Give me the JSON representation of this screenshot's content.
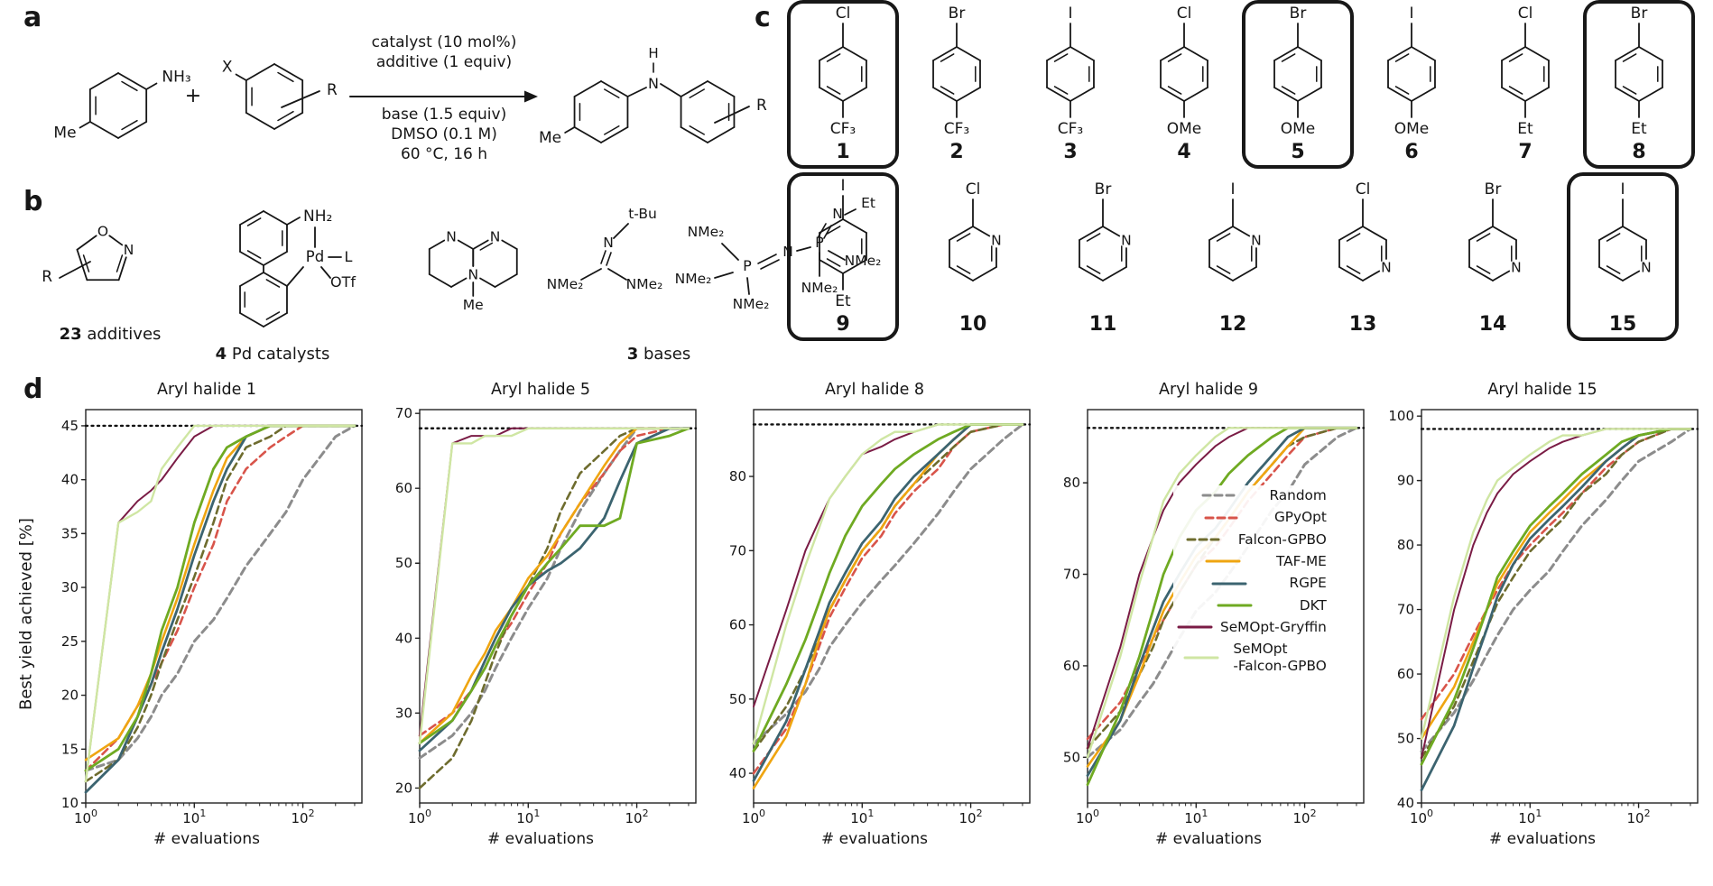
{
  "panels": {
    "a": "a",
    "b": "b",
    "c": "c",
    "d": "d"
  },
  "scheme": {
    "amine_me": "Me",
    "amine_nh": "NH₃",
    "plus": "+",
    "halide_x": "X",
    "halide_r": "R",
    "cond_top": [
      "catalyst (10 mol%)",
      "additive (1 equiv)"
    ],
    "cond_bottom": [
      "base (1.5 equiv)",
      "DMSO (0.1 M)",
      "60 °C, 16 h"
    ],
    "prod_me": "Me",
    "prod_h": "H",
    "prod_n": "N",
    "prod_r": "R"
  },
  "library": {
    "additives": {
      "count": "23",
      "label": "additives",
      "o": "O",
      "n": "N",
      "r": "R"
    },
    "catalysts": {
      "count": "4",
      "label": "Pd catalysts",
      "nh2": "NH₂",
      "pd": "Pd",
      "l": "L",
      "otf": "OTf"
    },
    "bases": {
      "count": "3",
      "label": "bases",
      "mtbd": {
        "n_left": "N",
        "n_right": "N",
        "n_bottom": "N",
        "me": "Me"
      },
      "btmg": {
        "tbu": "t-Bu",
        "n": "N",
        "nme2_left": "NMe₂",
        "nme2_right": "NMe₂"
      },
      "p2et": {
        "p1": "P",
        "p2": "P",
        "n_bridge": "N",
        "n_top": "N",
        "et": "Et",
        "nme2_a": "NMe₂",
        "nme2_b": "NMe₂",
        "nme2_c": "NMe₂",
        "nme2_d": "NMe₂",
        "nme2_e": "NMe₂"
      }
    }
  },
  "aryl_halides": [
    {
      "num": "1",
      "hal": "Cl",
      "sub": "CF₃",
      "kind": "benzene",
      "boxed": true
    },
    {
      "num": "2",
      "hal": "Br",
      "sub": "CF₃",
      "kind": "benzene",
      "boxed": false
    },
    {
      "num": "3",
      "hal": "I",
      "sub": "CF₃",
      "kind": "benzene",
      "boxed": false
    },
    {
      "num": "4",
      "hal": "Cl",
      "sub": "OMe",
      "kind": "benzene",
      "boxed": false
    },
    {
      "num": "5",
      "hal": "Br",
      "sub": "OMe",
      "kind": "benzene",
      "boxed": true
    },
    {
      "num": "6",
      "hal": "I",
      "sub": "OMe",
      "kind": "benzene",
      "boxed": false
    },
    {
      "num": "7",
      "hal": "Cl",
      "sub": "Et",
      "kind": "benzene",
      "boxed": false
    },
    {
      "num": "8",
      "hal": "Br",
      "sub": "Et",
      "kind": "benzene",
      "boxed": true
    },
    {
      "num": "9",
      "hal": "I",
      "sub": "Et",
      "kind": "benzene",
      "boxed": true
    },
    {
      "num": "10",
      "hal": "Cl",
      "sub": "N",
      "kind": "pyridine2",
      "boxed": false
    },
    {
      "num": "11",
      "hal": "Br",
      "sub": "N",
      "kind": "pyridine2",
      "boxed": false
    },
    {
      "num": "12",
      "hal": "I",
      "sub": "N",
      "kind": "pyridine2",
      "boxed": false
    },
    {
      "num": "13",
      "hal": "Cl",
      "sub": "N",
      "kind": "pyridine3",
      "boxed": false
    },
    {
      "num": "14",
      "hal": "Br",
      "sub": "N",
      "kind": "pyridine3",
      "boxed": false
    },
    {
      "num": "15",
      "hal": "I",
      "sub": "N",
      "kind": "pyridine3",
      "boxed": true
    }
  ],
  "chart_data": {
    "type": "line",
    "xlabel": "# evaluations",
    "ylabel": "Best yield achieved [%]",
    "xscale": "log",
    "xmax": 350,
    "x": [
      1,
      2,
      3,
      4,
      5,
      7,
      10,
      15,
      20,
      30,
      50,
      70,
      100,
      200,
      300
    ],
    "series_names": [
      "Random",
      "GPyOpt",
      "Falcon-GPBO",
      "TAF-ME",
      "RGPE",
      "DKT",
      "SeMOpt-Gryffin",
      "SeMOpt-Falcon-GPBO"
    ],
    "series_styles": [
      {
        "color": "#8c8c8c",
        "dash": true,
        "width": 3
      },
      {
        "color": "#d8544a",
        "dash": true,
        "width": 2.6
      },
      {
        "color": "#6e6c2e",
        "dash": true,
        "width": 2.6
      },
      {
        "color": "#efa511",
        "dash": false,
        "width": 2.6
      },
      {
        "color": "#3c6470",
        "dash": false,
        "width": 2.8
      },
      {
        "color": "#6faa22",
        "dash": false,
        "width": 2.8
      },
      {
        "color": "#7a1c45",
        "dash": false,
        "width": 2
      },
      {
        "color": "#cfe6a3",
        "dash": false,
        "width": 2.4
      }
    ],
    "panels": [
      {
        "title": "Aryl halide 1",
        "ylim": [
          10,
          46.5
        ],
        "yticks": [
          10,
          15,
          20,
          25,
          30,
          35,
          40,
          45
        ],
        "max_line": 45,
        "series": {
          "Random": [
            13,
            14,
            16,
            18,
            20,
            22,
            25,
            27,
            29,
            32,
            35,
            37,
            40,
            44,
            45
          ],
          "GPyOpt": [
            13,
            16,
            19,
            21,
            23,
            26,
            30,
            34,
            38,
            41,
            43,
            44,
            45,
            45,
            45
          ],
          "Falcon-GPBO": [
            12,
            14,
            17,
            20,
            23,
            27,
            31,
            36,
            40,
            43,
            44,
            45,
            45,
            45,
            45
          ],
          "TAF-ME": [
            14,
            16,
            19,
            22,
            25,
            29,
            34,
            39,
            42,
            44,
            45,
            45,
            45,
            45,
            45
          ],
          "RGPE": [
            11,
            14,
            18,
            21,
            24,
            28,
            33,
            38,
            41,
            44,
            45,
            45,
            45,
            45,
            45
          ],
          "DKT": [
            13,
            15,
            18,
            22,
            26,
            30,
            36,
            41,
            43,
            44,
            45,
            45,
            45,
            45,
            45
          ],
          "SeMOpt-Gryffin": [
            12,
            36,
            38,
            39,
            40,
            42,
            44,
            45,
            45,
            45,
            45,
            45,
            45,
            45,
            45
          ],
          "SeMOpt-Falcon-GPBO": [
            12,
            36,
            37,
            38,
            41,
            43,
            45,
            45,
            45,
            45,
            45,
            45,
            45,
            45,
            45
          ]
        }
      },
      {
        "title": "Aryl halide 5",
        "ylim": [
          18,
          70.5
        ],
        "yticks": [
          20,
          30,
          40,
          50,
          60,
          70
        ],
        "max_line": 68,
        "series": {
          "Random": [
            24,
            27,
            30,
            33,
            36,
            40,
            44,
            48,
            52,
            57,
            62,
            65,
            68,
            68,
            68
          ],
          "GPyOpt": [
            27,
            30,
            33,
            36,
            39,
            42,
            46,
            50,
            54,
            58,
            62,
            65,
            67,
            68,
            68
          ],
          "Falcon-GPBO": [
            20,
            24,
            29,
            34,
            38,
            43,
            47,
            52,
            57,
            62,
            65,
            67,
            68,
            68,
            68
          ],
          "TAF-ME": [
            26,
            30,
            35,
            38,
            41,
            44,
            48,
            51,
            54,
            58,
            63,
            66,
            68,
            68,
            68
          ],
          "RGPE": [
            25,
            29,
            33,
            37,
            40,
            44,
            47,
            49,
            50,
            52,
            56,
            61,
            66,
            68,
            68
          ],
          "DKT": [
            26,
            29,
            33,
            36,
            39,
            43,
            47,
            50,
            52,
            55,
            55,
            56,
            66,
            67,
            68
          ],
          "SeMOpt-Gryffin": [
            27,
            66,
            67,
            67,
            67,
            68,
            68,
            68,
            68,
            68,
            68,
            68,
            68,
            68,
            68
          ],
          "SeMOpt-Falcon-GPBO": [
            26,
            66,
            66,
            67,
            67,
            67,
            68,
            68,
            68,
            68,
            68,
            68,
            68,
            68,
            68
          ]
        }
      },
      {
        "title": "Aryl halide 8",
        "ylim": [
          36,
          89
        ],
        "yticks": [
          40,
          50,
          60,
          70,
          80
        ],
        "max_line": 87,
        "series": {
          "Random": [
            44,
            48,
            51,
            54,
            57,
            60,
            63,
            66,
            68,
            71,
            75,
            78,
            81,
            85,
            87
          ],
          "GPyOpt": [
            40,
            46,
            52,
            57,
            61,
            65,
            69,
            72,
            75,
            78,
            81,
            84,
            86,
            87,
            87
          ],
          "Falcon-GPBO": [
            43,
            49,
            54,
            58,
            62,
            66,
            70,
            73,
            76,
            79,
            82,
            84,
            86,
            87,
            87
          ],
          "TAF-ME": [
            38,
            45,
            52,
            58,
            62,
            66,
            70,
            73,
            76,
            79,
            83,
            85,
            87,
            87,
            87
          ],
          "RGPE": [
            39,
            47,
            54,
            59,
            63,
            67,
            71,
            74,
            77,
            80,
            83,
            85,
            87,
            87,
            87
          ],
          "DKT": [
            43,
            52,
            58,
            63,
            67,
            72,
            76,
            79,
            81,
            83,
            85,
            86,
            87,
            87,
            87
          ],
          "SeMOpt-Gryffin": [
            49,
            62,
            70,
            74,
            77,
            80,
            83,
            84,
            85,
            86,
            87,
            87,
            87,
            87,
            87
          ],
          "SeMOpt-Falcon-GPBO": [
            44,
            60,
            68,
            73,
            77,
            80,
            83,
            85,
            86,
            86,
            87,
            87,
            87,
            87,
            87
          ]
        }
      },
      {
        "title": "Aryl halide 9",
        "ylim": [
          45,
          88
        ],
        "yticks": [
          50,
          60,
          70,
          80
        ],
        "max_line": 86,
        "series": {
          "Random": [
            50,
            53,
            56,
            58,
            60,
            63,
            66,
            68,
            70,
            73,
            77,
            79,
            82,
            85,
            86
          ],
          "GPyOpt": [
            52,
            56,
            60,
            63,
            65,
            68,
            71,
            73,
            75,
            78,
            81,
            83,
            85,
            86,
            86
          ],
          "Falcon-GPBO": [
            51,
            55,
            59,
            62,
            65,
            68,
            71,
            74,
            76,
            79,
            82,
            84,
            85,
            86,
            86
          ],
          "TAF-ME": [
            49,
            54,
            59,
            63,
            66,
            69,
            72,
            74,
            76,
            79,
            82,
            84,
            86,
            86,
            86
          ],
          "RGPE": [
            48,
            54,
            60,
            64,
            67,
            70,
            73,
            75,
            77,
            80,
            83,
            85,
            86,
            86,
            86
          ],
          "DKT": [
            47,
            55,
            61,
            66,
            70,
            74,
            77,
            79,
            81,
            83,
            85,
            86,
            86,
            86,
            86
          ],
          "SeMOpt-Gryffin": [
            51,
            62,
            70,
            74,
            77,
            80,
            82,
            84,
            85,
            86,
            86,
            86,
            86,
            86,
            86
          ],
          "SeMOpt-Falcon-GPBO": [
            50,
            61,
            69,
            74,
            78,
            81,
            83,
            85,
            86,
            86,
            86,
            86,
            86,
            86,
            86
          ]
        }
      },
      {
        "title": "Aryl halide 15",
        "ylim": [
          40,
          101
        ],
        "yticks": [
          40,
          50,
          60,
          70,
          80,
          90,
          100
        ],
        "max_line": 98,
        "series": {
          "Random": [
            48,
            54,
            59,
            63,
            66,
            70,
            73,
            76,
            79,
            83,
            87,
            90,
            93,
            96,
            98
          ],
          "GPyOpt": [
            53,
            60,
            66,
            70,
            73,
            77,
            80,
            83,
            85,
            88,
            92,
            94,
            96,
            98,
            98
          ],
          "Falcon-GPBO": [
            47,
            55,
            62,
            67,
            71,
            75,
            79,
            82,
            84,
            88,
            91,
            94,
            96,
            98,
            98
          ],
          "TAF-ME": [
            50,
            58,
            65,
            70,
            74,
            78,
            82,
            85,
            87,
            90,
            93,
            95,
            97,
            98,
            98
          ],
          "RGPE": [
            42,
            52,
            61,
            67,
            72,
            77,
            81,
            84,
            86,
            89,
            93,
            95,
            97,
            98,
            98
          ],
          "DKT": [
            46,
            56,
            64,
            70,
            75,
            79,
            83,
            86,
            88,
            91,
            94,
            96,
            97,
            98,
            98
          ],
          "SeMOpt-Gryffin": [
            47,
            70,
            80,
            85,
            88,
            91,
            93,
            95,
            96,
            97,
            98,
            98,
            98,
            98,
            98
          ],
          "SeMOpt-Falcon-GPBO": [
            50,
            72,
            82,
            87,
            90,
            92,
            94,
            96,
            97,
            97,
            98,
            98,
            98,
            98,
            98
          ]
        }
      }
    ]
  },
  "legend": {
    "entries": [
      {
        "label_lines": [
          "Random"
        ],
        "color": "#8c8c8c",
        "dash": true
      },
      {
        "label_lines": [
          "GPyOpt"
        ],
        "color": "#d8544a",
        "dash": true
      },
      {
        "label_lines": [
          "Falcon-GPBO"
        ],
        "color": "#6e6c2e",
        "dash": true
      },
      {
        "label_lines": [
          "TAF-ME"
        ],
        "color": "#efa511",
        "dash": false
      },
      {
        "label_lines": [
          "RGPE"
        ],
        "color": "#3c6470",
        "dash": false
      },
      {
        "label_lines": [
          "DKT"
        ],
        "color": "#6faa22",
        "dash": false
      },
      {
        "label_lines": [
          "SeMOpt-Gryffin"
        ],
        "color": "#7a1c45",
        "dash": false
      },
      {
        "label_lines": [
          "SeMOpt",
          "-Falcon-GPBO"
        ],
        "color": "#cfe6a3",
        "dash": false
      }
    ]
  }
}
